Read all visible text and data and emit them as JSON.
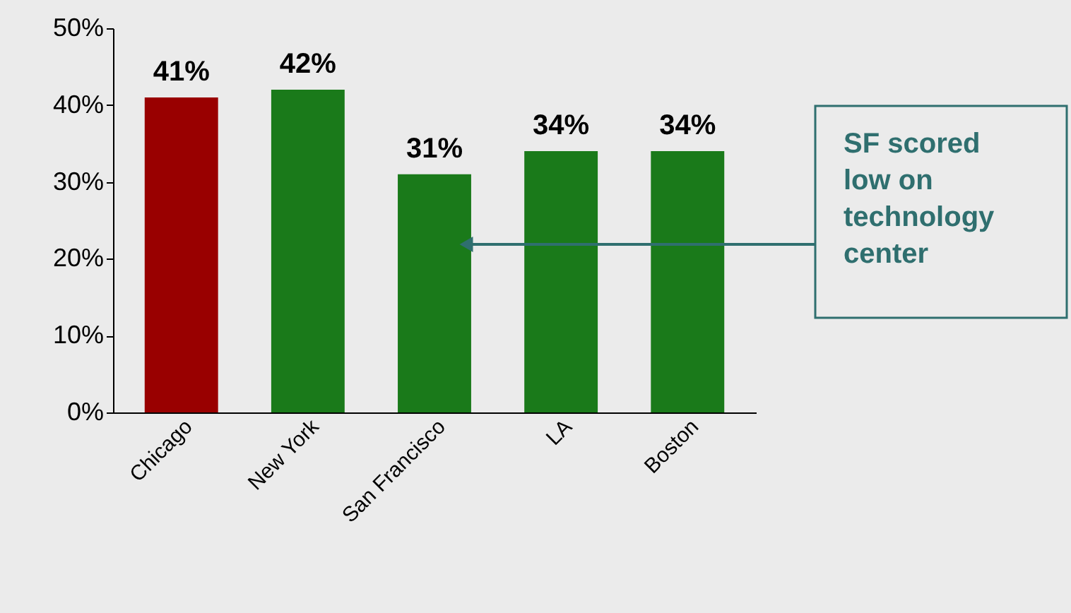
{
  "chart_data": {
    "type": "bar",
    "categories": [
      "Chicago",
      "New York",
      "San Francisco",
      "LA",
      "Boston"
    ],
    "values": [
      41,
      42,
      31,
      34,
      34
    ],
    "colors": [
      "#990000",
      "#1a7a1a",
      "#1a7a1a",
      "#1a7a1a",
      "#1a7a1a"
    ],
    "value_labels": [
      "41%",
      "42%",
      "31%",
      "34%",
      "34%"
    ],
    "ylim": [
      0,
      50
    ],
    "yticks": [
      {
        "value": 0,
        "label": "0%"
      },
      {
        "value": 10,
        "label": "10%"
      },
      {
        "value": 20,
        "label": "20%"
      },
      {
        "value": 30,
        "label": "30%"
      },
      {
        "value": 40,
        "label": "40%"
      },
      {
        "value": 50,
        "label": "50%"
      }
    ],
    "annotations": [
      "SF scored low on technology center"
    ],
    "grid": false
  }
}
